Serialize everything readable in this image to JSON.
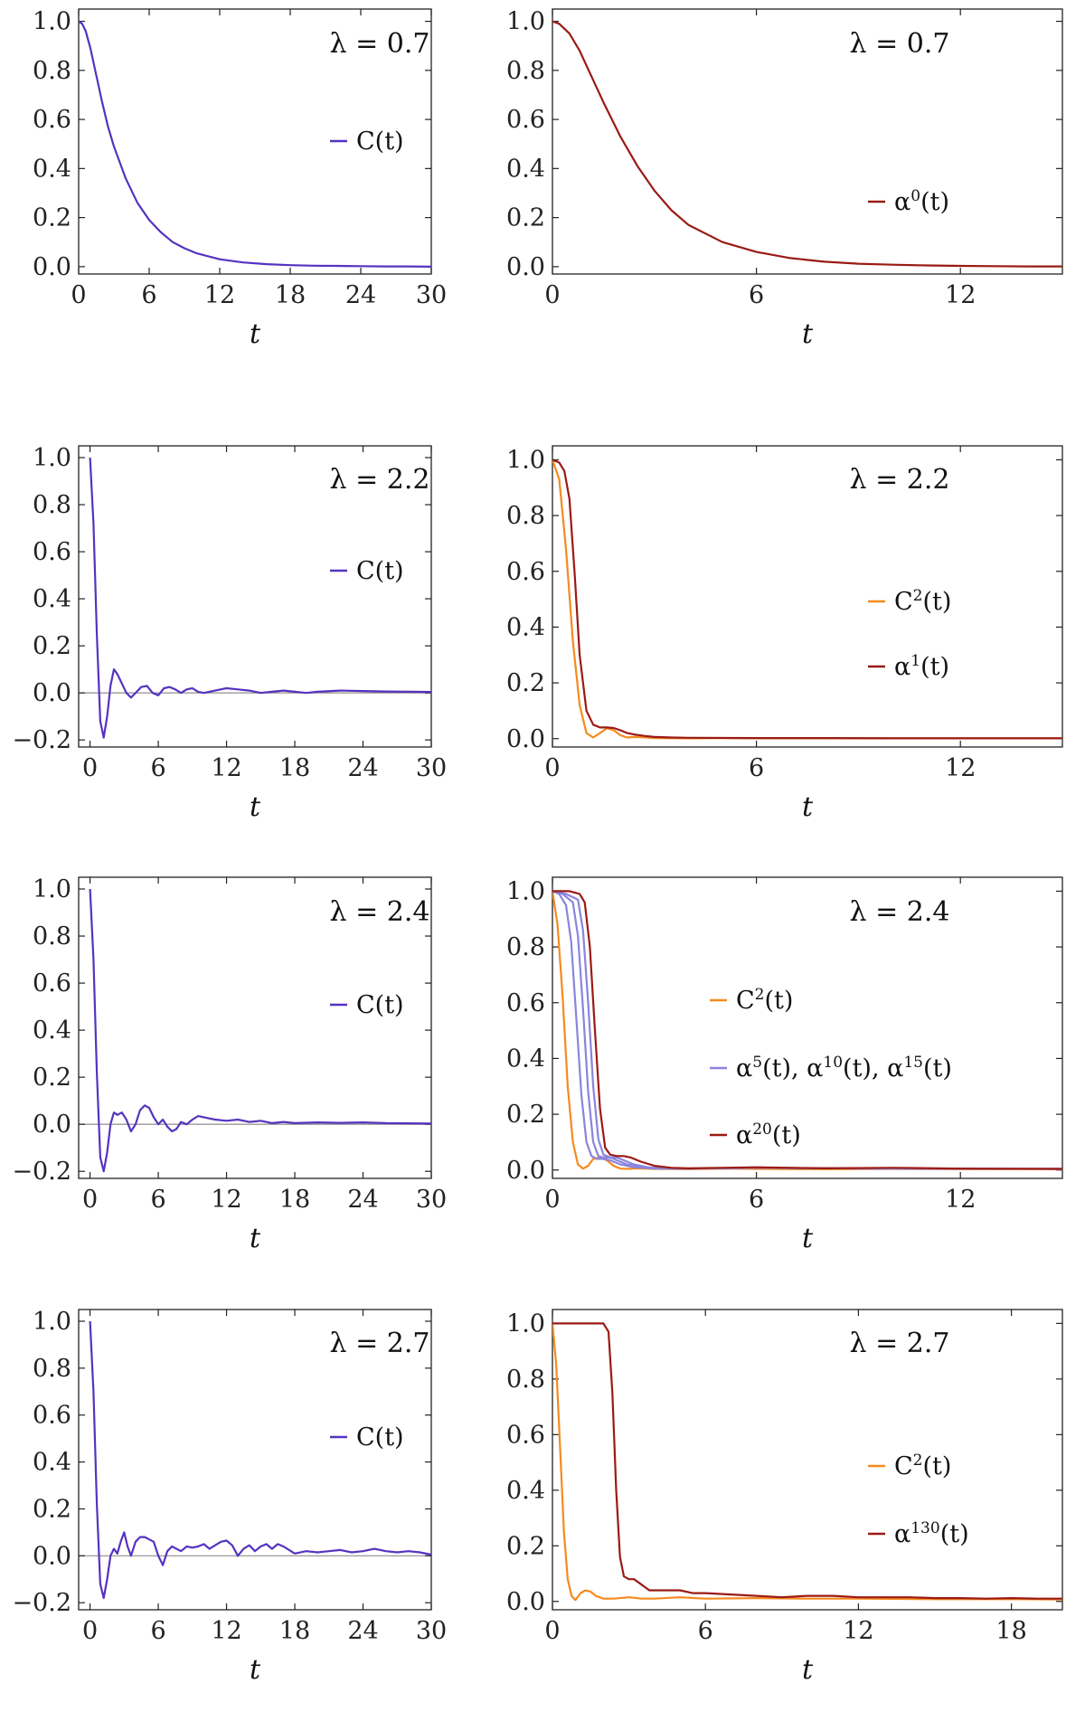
{
  "colors": {
    "C": "#5533c0",
    "C2": "#f58a1f",
    "alpha": "#9b1a14",
    "alpha_mid": "#8a84de",
    "zero_line": "#9a9a9a"
  },
  "chart_data": [
    {
      "type": "line",
      "position": "row1-left",
      "annotation": "λ = 0.7",
      "xlabel": "t",
      "xlim": [
        0,
        30
      ],
      "ylim": [
        -0.03,
        1.05
      ],
      "xticks": [
        "0",
        "6",
        "12",
        "18",
        "24",
        "30"
      ],
      "yticks": [
        "0.0",
        "0.2",
        "0.4",
        "0.6",
        "0.8",
        "1.0"
      ],
      "legend_placement": "upper-right",
      "zero_line": false,
      "series": [
        {
          "name": "C(t)",
          "color": "C",
          "x": [
            0,
            0.3,
            0.6,
            1,
            1.5,
            2,
            2.5,
            3,
            4,
            5,
            6,
            7,
            8,
            9,
            10,
            12,
            14,
            16,
            18,
            20,
            22,
            24,
            26,
            28,
            30
          ],
          "y": [
            1.0,
            0.99,
            0.96,
            0.89,
            0.78,
            0.67,
            0.57,
            0.49,
            0.36,
            0.26,
            0.19,
            0.14,
            0.1,
            0.075,
            0.055,
            0.03,
            0.017,
            0.01,
            0.006,
            0.004,
            0.003,
            0.002,
            0.001,
            0.001,
            0.0
          ]
        }
      ]
    },
    {
      "type": "line",
      "position": "row1-right",
      "annotation": "λ = 0.7",
      "xlabel": "t",
      "xlim": [
        0,
        15
      ],
      "ylim": [
        -0.03,
        1.05
      ],
      "xticks": [
        "0",
        "6",
        "12"
      ],
      "yticks": [
        "0.0",
        "0.2",
        "0.4",
        "0.6",
        "0.8",
        "1.0"
      ],
      "legend_placement": "middle-right",
      "zero_line": false,
      "series": [
        {
          "name": "α⁰(t)",
          "color": "alpha",
          "x": [
            0,
            0.2,
            0.5,
            0.8,
            1,
            1.5,
            2,
            2.5,
            3,
            3.5,
            4,
            5,
            6,
            7,
            8,
            9,
            10,
            11,
            12,
            13,
            14,
            15
          ],
          "y": [
            1.0,
            0.99,
            0.95,
            0.88,
            0.82,
            0.67,
            0.53,
            0.41,
            0.31,
            0.23,
            0.17,
            0.1,
            0.06,
            0.035,
            0.02,
            0.012,
            0.008,
            0.005,
            0.003,
            0.002,
            0.001,
            0.001
          ]
        }
      ]
    },
    {
      "type": "line",
      "position": "row2-left",
      "annotation": "λ = 2.2",
      "xlabel": "t",
      "xlim": [
        -1,
        30
      ],
      "ylim": [
        -0.23,
        1.05
      ],
      "xticks": [
        "0",
        "6",
        "12",
        "18",
        "24",
        "30"
      ],
      "yticks": [
        "−0.2",
        "0.0",
        "0.2",
        "0.4",
        "0.6",
        "0.8",
        "1.0"
      ],
      "legend_placement": "upper-right",
      "zero_line": true,
      "series": [
        {
          "name": "C(t)",
          "color": "C",
          "x": [
            0,
            0.3,
            0.6,
            0.9,
            1.2,
            1.5,
            1.8,
            2.1,
            2.4,
            2.8,
            3.2,
            3.6,
            4.0,
            4.5,
            5.0,
            5.5,
            6.0,
            6.5,
            7.0,
            7.5,
            8.0,
            8.5,
            9.0,
            9.5,
            10,
            11,
            12,
            13,
            14,
            15,
            16,
            17,
            18,
            19,
            20,
            22,
            24,
            26,
            28,
            30
          ],
          "y": [
            1.0,
            0.72,
            0.25,
            -0.12,
            -0.19,
            -0.1,
            0.03,
            0.1,
            0.08,
            0.04,
            0.0,
            -0.02,
            0.0,
            0.025,
            0.03,
            0.0,
            -0.01,
            0.02,
            0.025,
            0.015,
            0.0,
            0.015,
            0.02,
            0.005,
            0.0,
            0.01,
            0.02,
            0.015,
            0.01,
            0.0,
            0.005,
            0.01,
            0.005,
            0.0,
            0.005,
            0.01,
            0.008,
            0.006,
            0.005,
            0.004
          ]
        }
      ]
    },
    {
      "type": "line",
      "position": "row2-right",
      "annotation": "λ = 2.2",
      "xlabel": "t",
      "xlim": [
        0,
        15
      ],
      "ylim": [
        -0.03,
        1.05
      ],
      "xticks": [
        "0",
        "6",
        "12"
      ],
      "yticks": [
        "0.0",
        "0.2",
        "0.4",
        "0.6",
        "0.8",
        "1.0"
      ],
      "legend_placement": "middle-right",
      "zero_line": false,
      "series": [
        {
          "name": "C²(t)",
          "color": "C2",
          "x": [
            0,
            0.2,
            0.4,
            0.6,
            0.8,
            1.0,
            1.2,
            1.4,
            1.6,
            1.8,
            2.0,
            2.2,
            2.4,
            2.6,
            3,
            4,
            5,
            6,
            8,
            10,
            12,
            15
          ],
          "y": [
            1.0,
            0.93,
            0.68,
            0.35,
            0.12,
            0.02,
            0.004,
            0.02,
            0.037,
            0.03,
            0.012,
            0.004,
            0.006,
            0.005,
            0.002,
            0.001,
            0.002,
            0.001,
            0.001,
            0.001,
            0.001,
            0.001
          ]
        },
        {
          "name": "α¹(t)",
          "color": "alpha",
          "x": [
            0,
            0.2,
            0.35,
            0.5,
            0.65,
            0.8,
            1.0,
            1.2,
            1.4,
            1.6,
            1.8,
            2.0,
            2.2,
            2.4,
            2.7,
            3.0,
            3.5,
            4,
            6,
            8,
            10,
            12,
            15
          ],
          "y": [
            1.0,
            0.99,
            0.96,
            0.86,
            0.6,
            0.3,
            0.1,
            0.05,
            0.04,
            0.04,
            0.038,
            0.03,
            0.02,
            0.015,
            0.01,
            0.006,
            0.004,
            0.003,
            0.002,
            0.002,
            0.001,
            0.001,
            0.001
          ]
        }
      ]
    },
    {
      "type": "line",
      "position": "row3-left",
      "annotation": "λ = 2.4",
      "xlabel": "t",
      "xlim": [
        -1,
        30
      ],
      "ylim": [
        -0.23,
        1.05
      ],
      "xticks": [
        "0",
        "6",
        "12",
        "18",
        "24",
        "30"
      ],
      "yticks": [
        "−0.2",
        "0.0",
        "0.2",
        "0.4",
        "0.6",
        "0.8",
        "1.0"
      ],
      "legend_placement": "upper-right",
      "zero_line": true,
      "series": [
        {
          "name": "C(t)",
          "color": "C",
          "x": [
            0,
            0.3,
            0.6,
            0.9,
            1.2,
            1.5,
            1.8,
            2.1,
            2.4,
            2.8,
            3.2,
            3.6,
            4.0,
            4.4,
            4.8,
            5.2,
            5.6,
            6.0,
            6.4,
            6.8,
            7.2,
            7.6,
            8.0,
            8.5,
            9.0,
            9.5,
            10,
            11,
            12,
            13,
            14,
            15,
            16,
            17,
            18,
            20,
            22,
            24,
            26,
            28,
            30
          ],
          "y": [
            1.0,
            0.7,
            0.22,
            -0.14,
            -0.2,
            -0.12,
            0.0,
            0.05,
            0.04,
            0.05,
            0.02,
            -0.03,
            0.0,
            0.06,
            0.08,
            0.07,
            0.03,
            0.0,
            0.02,
            -0.01,
            -0.03,
            -0.02,
            0.01,
            0.0,
            0.02,
            0.035,
            0.03,
            0.02,
            0.015,
            0.02,
            0.01,
            0.015,
            0.005,
            0.01,
            0.005,
            0.008,
            0.006,
            0.008,
            0.005,
            0.004,
            0.003
          ]
        }
      ]
    },
    {
      "type": "line",
      "position": "row3-right",
      "annotation": "λ = 2.4",
      "xlabel": "t",
      "xlim": [
        0,
        15
      ],
      "ylim": [
        -0.03,
        1.05
      ],
      "xticks": [
        "0",
        "6",
        "12"
      ],
      "yticks": [
        "0.0",
        "0.2",
        "0.4",
        "0.6",
        "0.8",
        "1.0"
      ],
      "legend_placement": "middle-right",
      "zero_line": false,
      "series": [
        {
          "name": "C²(t)",
          "color": "C2",
          "x": [
            0,
            0.15,
            0.3,
            0.45,
            0.6,
            0.75,
            0.9,
            1.05,
            1.2,
            1.4,
            1.6,
            1.8,
            2.0,
            2.2,
            2.5,
            3,
            4,
            5,
            6,
            8,
            10,
            12,
            15
          ],
          "y": [
            1.0,
            0.88,
            0.62,
            0.3,
            0.1,
            0.02,
            0.005,
            0.015,
            0.04,
            0.045,
            0.035,
            0.015,
            0.005,
            0.004,
            0.006,
            0.004,
            0.003,
            0.005,
            0.004,
            0.003,
            0.004,
            0.003,
            0.003
          ]
        },
        {
          "name": "α⁵(t)",
          "legend_group": "α⁵(t), α¹⁰(t), α¹⁵(t)",
          "color": "alpha_mid",
          "x": [
            0,
            0.2,
            0.4,
            0.55,
            0.7,
            0.85,
            1.0,
            1.15,
            1.3,
            1.5,
            1.7,
            2.0,
            2.4,
            3,
            4,
            6,
            10,
            15
          ],
          "y": [
            1.0,
            0.99,
            0.95,
            0.82,
            0.55,
            0.27,
            0.1,
            0.05,
            0.04,
            0.04,
            0.035,
            0.02,
            0.01,
            0.005,
            0.005,
            0.008,
            0.005,
            0.004
          ]
        },
        {
          "name": "α¹⁰(t)",
          "legend_group": "α⁵(t), α¹⁰(t), α¹⁵(t)",
          "color": "alpha_mid",
          "x": [
            0,
            0.3,
            0.6,
            0.75,
            0.9,
            1.05,
            1.2,
            1.35,
            1.5,
            1.7,
            1.9,
            2.2,
            2.6,
            3,
            4,
            6,
            10,
            15
          ],
          "y": [
            1.0,
            0.99,
            0.96,
            0.84,
            0.58,
            0.28,
            0.1,
            0.05,
            0.045,
            0.045,
            0.035,
            0.02,
            0.01,
            0.006,
            0.005,
            0.008,
            0.005,
            0.004
          ]
        },
        {
          "name": "α¹⁵(t)",
          "legend_group": "α⁵(t), α¹⁰(t), α¹⁵(t)",
          "color": "alpha_mid",
          "x": [
            0,
            0.4,
            0.75,
            0.9,
            1.05,
            1.2,
            1.35,
            1.5,
            1.7,
            1.9,
            2.1,
            2.4,
            2.8,
            3.2,
            4,
            6,
            10,
            15
          ],
          "y": [
            1.0,
            0.99,
            0.97,
            0.86,
            0.6,
            0.3,
            0.11,
            0.055,
            0.045,
            0.045,
            0.035,
            0.02,
            0.01,
            0.006,
            0.005,
            0.008,
            0.005,
            0.004
          ]
        },
        {
          "name": "α²⁰(t)",
          "color": "alpha",
          "x": [
            0,
            0.5,
            0.8,
            0.95,
            1.1,
            1.25,
            1.4,
            1.55,
            1.7,
            1.9,
            2.1,
            2.3,
            2.6,
            3.0,
            3.5,
            4,
            5,
            6,
            8,
            10,
            12,
            15
          ],
          "y": [
            1.0,
            1.0,
            0.99,
            0.96,
            0.8,
            0.5,
            0.22,
            0.08,
            0.055,
            0.05,
            0.05,
            0.045,
            0.03,
            0.015,
            0.008,
            0.006,
            0.008,
            0.01,
            0.006,
            0.008,
            0.005,
            0.004
          ]
        }
      ]
    },
    {
      "type": "line",
      "position": "row4-left",
      "annotation": "λ = 2.7",
      "xlabel": "t",
      "xlim": [
        -1,
        30
      ],
      "ylim": [
        -0.23,
        1.05
      ],
      "xticks": [
        "0",
        "6",
        "12",
        "18",
        "24",
        "30"
      ],
      "yticks": [
        "−0.2",
        "0.0",
        "0.2",
        "0.4",
        "0.6",
        "0.8",
        "1.0"
      ],
      "legend_placement": "upper-right",
      "zero_line": true,
      "series": [
        {
          "name": "C(t)",
          "color": "C",
          "x": [
            0,
            0.3,
            0.6,
            0.9,
            1.2,
            1.5,
            1.8,
            2.1,
            2.4,
            2.7,
            3.0,
            3.3,
            3.6,
            4.0,
            4.4,
            4.8,
            5.2,
            5.6,
            6.0,
            6.4,
            6.8,
            7.2,
            7.6,
            8.0,
            8.5,
            9.0,
            9.5,
            10,
            10.5,
            11,
            11.5,
            12,
            12.5,
            13,
            13.5,
            14,
            14.5,
            15,
            15.5,
            16,
            16.5,
            17,
            18,
            19,
            20,
            21,
            22,
            23,
            24,
            25,
            26,
            27,
            28,
            29,
            30
          ],
          "y": [
            1.0,
            0.7,
            0.22,
            -0.12,
            -0.18,
            -0.1,
            0.0,
            0.03,
            0.01,
            0.06,
            0.1,
            0.04,
            0.0,
            0.06,
            0.08,
            0.08,
            0.07,
            0.06,
            0.0,
            -0.04,
            0.02,
            0.04,
            0.03,
            0.02,
            0.04,
            0.035,
            0.04,
            0.05,
            0.03,
            0.045,
            0.06,
            0.065,
            0.045,
            0.0,
            0.03,
            0.045,
            0.02,
            0.04,
            0.05,
            0.03,
            0.05,
            0.04,
            0.01,
            0.02,
            0.015,
            0.02,
            0.025,
            0.015,
            0.02,
            0.03,
            0.02,
            0.015,
            0.02,
            0.015,
            0.005
          ]
        }
      ]
    },
    {
      "type": "line",
      "position": "row4-right",
      "annotation": "λ = 2.7",
      "xlabel": "t",
      "xlim": [
        0,
        20
      ],
      "ylim": [
        -0.03,
        1.05
      ],
      "xticks": [
        "0",
        "6",
        "12",
        "18"
      ],
      "yticks": [
        "0.0",
        "0.2",
        "0.4",
        "0.6",
        "0.8",
        "1.0"
      ],
      "legend_placement": "middle-right",
      "zero_line": false,
      "series": [
        {
          "name": "C²(t)",
          "color": "C2",
          "x": [
            0,
            0.15,
            0.3,
            0.45,
            0.6,
            0.75,
            0.9,
            1.1,
            1.3,
            1.5,
            1.7,
            2.0,
            2.4,
            3,
            3.5,
            4,
            5,
            6,
            8,
            10,
            12,
            15,
            18,
            20
          ],
          "y": [
            1.0,
            0.85,
            0.55,
            0.25,
            0.08,
            0.02,
            0.005,
            0.03,
            0.04,
            0.035,
            0.02,
            0.01,
            0.01,
            0.015,
            0.01,
            0.01,
            0.015,
            0.01,
            0.012,
            0.01,
            0.01,
            0.008,
            0.008,
            0.007
          ]
        },
        {
          "name": "α¹³⁰(t)",
          "color": "alpha",
          "x": [
            0,
            1.5,
            2.0,
            2.2,
            2.35,
            2.5,
            2.65,
            2.8,
            3.0,
            3.2,
            3.5,
            3.8,
            4.0,
            4.5,
            5.0,
            5.5,
            6.0,
            7.0,
            8.0,
            9.0,
            10,
            11,
            12,
            13,
            14,
            15,
            16,
            17,
            18,
            19,
            20
          ],
          "y": [
            1.0,
            1.0,
            1.0,
            0.97,
            0.75,
            0.4,
            0.16,
            0.09,
            0.08,
            0.08,
            0.06,
            0.04,
            0.04,
            0.04,
            0.04,
            0.03,
            0.03,
            0.025,
            0.02,
            0.015,
            0.02,
            0.02,
            0.015,
            0.015,
            0.015,
            0.012,
            0.012,
            0.01,
            0.012,
            0.01,
            0.01
          ]
        }
      ]
    }
  ]
}
